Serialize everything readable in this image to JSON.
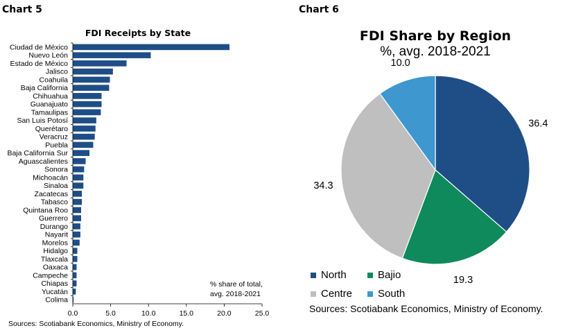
{
  "chart5": {
    "label": "Chart 5",
    "source": "Sources: Scotiabank Economics, Ministry of Economy.",
    "note_line1": "% share of total,",
    "note_line2": "avg. 2018-2021"
  },
  "chart6": {
    "label": "Chart 6",
    "source": "Sources: Scotiabank Economics, Ministry of Economy."
  },
  "chart_data": [
    {
      "type": "bar",
      "orientation": "horizontal",
      "title": "FDI Receipts by State",
      "xlim": [
        0,
        25
      ],
      "xticks": [
        "0.0",
        "5.0",
        "10.0",
        "15.0",
        "20.0",
        "25.0"
      ],
      "color": "#1f4e87",
      "categories": [
        "Ciudad de México",
        "Nuevo León",
        "Estado de México",
        "Jalisco",
        "Coahuila",
        "Baja California",
        "Chihuahua",
        "Guanajuato",
        "Tamaulipas",
        "San Luis Potosí",
        "Querétaro",
        "Veracruz",
        "Puebla",
        "Baja California Sur",
        "Aguascalientes",
        "Sonora",
        "Michoacán",
        "Sinaloa",
        "Zacatecas",
        "Tabasco",
        "Quintana Roo",
        "Guerrero",
        "Durango",
        "Nayarit",
        "Morelos",
        "Hidalgo",
        "Tlaxcala",
        "Oaxaca",
        "Campeche",
        "Chiapas",
        "Yucatán",
        "Colima"
      ],
      "values": [
        20.7,
        10.3,
        7.1,
        5.3,
        4.9,
        4.8,
        3.8,
        3.8,
        3.7,
        3.1,
        3.0,
        2.9,
        2.7,
        2.2,
        1.7,
        1.5,
        1.4,
        1.4,
        1.2,
        1.2,
        1.1,
        1.1,
        1.0,
        1.0,
        0.9,
        0.6,
        0.6,
        0.5,
        0.5,
        0.5,
        0.4,
        0.1
      ]
    },
    {
      "type": "pie",
      "title": "FDI Share by Region",
      "subtitle": "%, avg. 2018-2021",
      "legend_position": "bottom-left",
      "slices": [
        {
          "label": "North",
          "value": 36.4,
          "value_label": "36.4",
          "color": "#1f4e87"
        },
        {
          "label": "Bajio",
          "value": 19.3,
          "value_label": "19.3",
          "color": "#0e8a5c"
        },
        {
          "label": "Centre",
          "value": 34.3,
          "value_label": "34.3",
          "color": "#bfbfbf"
        },
        {
          "label": "South",
          "value": 10.0,
          "value_label": "10.0",
          "color": "#3e97cf"
        }
      ]
    }
  ]
}
